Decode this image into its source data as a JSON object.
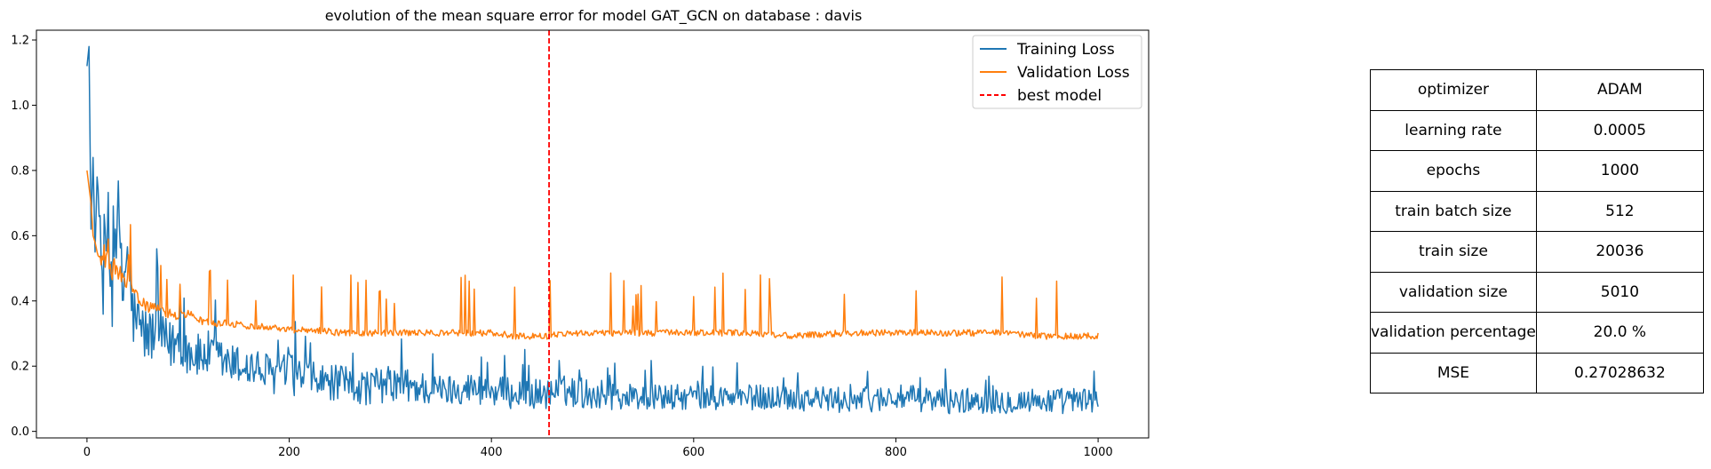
{
  "chart_data": {
    "type": "line",
    "title": "evolution of the mean square error for model GAT_GCN on database : davis",
    "xlim": [
      -50,
      1050
    ],
    "ylim": [
      -0.02,
      1.23
    ],
    "x_ticks": [
      0,
      200,
      400,
      600,
      800,
      1000
    ],
    "y_ticks": [
      0.0,
      0.2,
      0.4,
      0.6,
      0.8,
      1.0,
      1.2
    ],
    "legend_position": "top-right",
    "series": [
      {
        "name": "Training Loss",
        "color": "#1f77b4",
        "x": [
          0,
          2,
          4,
          6,
          8,
          10,
          15,
          20,
          25,
          30,
          35,
          40,
          45,
          50,
          60,
          70,
          80,
          90,
          100,
          110,
          120,
          140,
          160,
          180,
          200,
          225,
          250,
          275,
          300,
          325,
          350,
          375,
          400,
          425,
          455,
          475,
          500,
          550,
          600,
          650,
          700,
          750,
          800,
          850,
          900,
          950,
          1000
        ],
        "y": [
          1.12,
          1.18,
          0.62,
          0.84,
          0.55,
          0.78,
          0.45,
          0.6,
          0.42,
          0.7,
          0.4,
          0.55,
          0.35,
          0.32,
          0.28,
          0.3,
          0.25,
          0.27,
          0.24,
          0.22,
          0.23,
          0.2,
          0.19,
          0.17,
          0.17,
          0.15,
          0.14,
          0.13,
          0.14,
          0.13,
          0.12,
          0.13,
          0.12,
          0.11,
          0.11,
          0.12,
          0.11,
          0.1,
          0.1,
          0.1,
          0.1,
          0.09,
          0.1,
          0.09,
          0.09,
          0.09,
          0.09
        ],
        "noise": [
          0.0,
          0.0,
          0.0,
          0.0,
          0.0,
          0.0,
          0.18,
          0.2,
          0.17,
          0.16,
          0.15,
          0.14,
          0.13,
          0.12,
          0.11,
          0.11,
          0.1,
          0.1,
          0.09,
          0.09,
          0.09,
          0.08,
          0.08,
          0.08,
          0.08,
          0.07,
          0.07,
          0.07,
          0.07,
          0.07,
          0.06,
          0.06,
          0.06,
          0.06,
          0.06,
          0.06,
          0.06,
          0.05,
          0.05,
          0.05,
          0.05,
          0.05,
          0.05,
          0.05,
          0.05,
          0.05,
          0.05
        ]
      },
      {
        "name": "Validation Loss",
        "color": "#ff7f0e",
        "x": [
          0,
          2,
          4,
          6,
          8,
          10,
          15,
          20,
          25,
          30,
          35,
          40,
          45,
          50,
          60,
          70,
          80,
          90,
          100,
          110,
          120,
          140,
          160,
          180,
          200,
          225,
          250,
          275,
          300,
          325,
          350,
          375,
          400,
          425,
          455,
          475,
          500,
          550,
          600,
          650,
          700,
          750,
          800,
          850,
          900,
          950,
          1000
        ],
        "y": [
          0.8,
          0.75,
          0.7,
          0.6,
          0.58,
          0.55,
          0.5,
          0.55,
          0.47,
          0.5,
          0.45,
          0.44,
          0.43,
          0.4,
          0.38,
          0.37,
          0.36,
          0.35,
          0.36,
          0.34,
          0.33,
          0.33,
          0.32,
          0.32,
          0.31,
          0.31,
          0.3,
          0.3,
          0.3,
          0.3,
          0.3,
          0.3,
          0.3,
          0.29,
          0.29,
          0.3,
          0.3,
          0.3,
          0.3,
          0.3,
          0.29,
          0.3,
          0.3,
          0.3,
          0.3,
          0.29,
          0.29
        ],
        "noise": [
          0.0,
          0.0,
          0.0,
          0.0,
          0.0,
          0.0,
          0.08,
          0.1,
          0.09,
          0.08,
          0.07,
          0.06,
          0.05,
          0.04,
          0.035,
          0.03,
          0.03,
          0.03,
          0.025,
          0.025,
          0.025,
          0.02,
          0.02,
          0.02,
          0.02,
          0.02,
          0.02,
          0.02,
          0.02,
          0.02,
          0.02,
          0.02,
          0.02,
          0.02,
          0.02,
          0.02,
          0.02,
          0.02,
          0.02,
          0.02,
          0.02,
          0.02,
          0.02,
          0.02,
          0.02,
          0.02,
          0.02
        ]
      }
    ],
    "best_model": {
      "name": "best model",
      "x": 457,
      "color": "#ff0000"
    }
  },
  "table": [
    {
      "key": "optimizer",
      "value": "ADAM"
    },
    {
      "key": "learning rate",
      "value": "0.0005"
    },
    {
      "key": "epochs",
      "value": "1000"
    },
    {
      "key": "train batch size",
      "value": "512"
    },
    {
      "key": "train size",
      "value": "20036"
    },
    {
      "key": "validation size",
      "value": "5010"
    },
    {
      "key": "validation percentage",
      "value": "20.0 %"
    },
    {
      "key": "MSE",
      "value": "0.27028632"
    }
  ]
}
